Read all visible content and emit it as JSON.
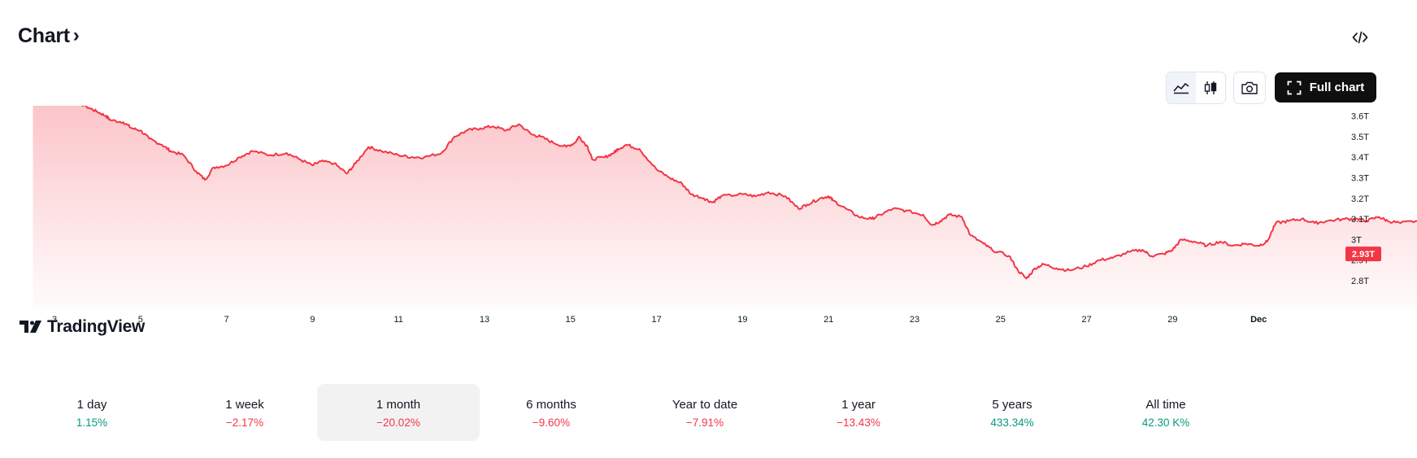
{
  "header": {
    "title": "Chart",
    "chevron": "›",
    "embed_icon": "code-icon"
  },
  "toolbar": {
    "line_icon": "area-chart-icon",
    "candle_icon": "candlestick-icon",
    "camera_icon": "camera-icon",
    "full_chart_label": "Full chart",
    "full_chart_icon": "fullscreen-icon"
  },
  "branding": {
    "logo_text": "TradingView"
  },
  "colors": {
    "line": "#f23645",
    "fill_top": "#f23645",
    "positive": "#089981",
    "negative": "#f23645",
    "badge_bg": "#f23645"
  },
  "chart_data": {
    "type": "area",
    "x_tick_labels": [
      "3",
      "5",
      "7",
      "9",
      "11",
      "13",
      "15",
      "17",
      "19",
      "21",
      "23",
      "25",
      "27",
      "29",
      "Dec"
    ],
    "y_tick_labels": [
      "3.6T",
      "3.5T",
      "3.4T",
      "3.3T",
      "3.2T",
      "3.1T",
      "3T",
      "2.9T",
      "2.8T"
    ],
    "y_ticks": [
      3.6,
      3.5,
      3.4,
      3.3,
      3.2,
      3.1,
      3.0,
      2.9,
      2.8
    ],
    "ylim": [
      2.795,
      3.7
    ],
    "x_unit": "day index (0 = Nov 3, 28 = Dec 1)",
    "last_value_label": "2.93T",
    "last_value": 2.93,
    "grid": false,
    "series": [
      {
        "values": [
          [
            -0.5,
            3.68
          ],
          [
            0.0,
            3.685
          ],
          [
            0.3,
            3.68
          ],
          [
            0.5,
            3.67
          ],
          [
            0.8,
            3.64
          ],
          [
            1.0,
            3.62
          ],
          [
            1.2,
            3.6
          ],
          [
            1.3,
            3.58
          ],
          [
            1.6,
            3.57
          ],
          [
            1.8,
            3.54
          ],
          [
            2.0,
            3.53
          ],
          [
            2.2,
            3.49
          ],
          [
            2.5,
            3.46
          ],
          [
            2.7,
            3.43
          ],
          [
            3.0,
            3.41
          ],
          [
            3.3,
            3.33
          ],
          [
            3.5,
            3.29
          ],
          [
            3.7,
            3.35
          ],
          [
            4.0,
            3.36
          ],
          [
            4.3,
            3.4
          ],
          [
            4.6,
            3.43
          ],
          [
            5.0,
            3.41
          ],
          [
            5.4,
            3.42
          ],
          [
            5.7,
            3.39
          ],
          [
            6.0,
            3.36
          ],
          [
            6.2,
            3.38
          ],
          [
            6.5,
            3.37
          ],
          [
            6.8,
            3.32
          ],
          [
            7.0,
            3.37
          ],
          [
            7.3,
            3.45
          ],
          [
            7.6,
            3.43
          ],
          [
            8.0,
            3.41
          ],
          [
            8.3,
            3.4
          ],
          [
            8.6,
            3.4
          ],
          [
            9.0,
            3.42
          ],
          [
            9.3,
            3.5
          ],
          [
            9.6,
            3.53
          ],
          [
            9.9,
            3.54
          ],
          [
            10.2,
            3.55
          ],
          [
            10.5,
            3.53
          ],
          [
            10.8,
            3.56
          ],
          [
            11.1,
            3.51
          ],
          [
            11.3,
            3.5
          ],
          [
            11.6,
            3.47
          ],
          [
            11.9,
            3.45
          ],
          [
            12.1,
            3.47
          ],
          [
            12.2,
            3.5
          ],
          [
            12.4,
            3.45
          ],
          [
            12.5,
            3.39
          ],
          [
            12.8,
            3.4
          ],
          [
            13.0,
            3.42
          ],
          [
            13.1,
            3.44
          ],
          [
            13.3,
            3.46
          ],
          [
            13.6,
            3.44
          ],
          [
            14.0,
            3.34
          ],
          [
            14.3,
            3.3
          ],
          [
            14.6,
            3.27
          ],
          [
            14.8,
            3.22
          ],
          [
            15.1,
            3.2
          ],
          [
            15.3,
            3.18
          ],
          [
            15.5,
            3.21
          ],
          [
            16.0,
            3.22
          ],
          [
            16.3,
            3.21
          ],
          [
            16.6,
            3.23
          ],
          [
            17.0,
            3.21
          ],
          [
            17.3,
            3.15
          ],
          [
            17.5,
            3.17
          ],
          [
            17.8,
            3.2
          ],
          [
            18.0,
            3.21
          ],
          [
            18.1,
            3.19
          ],
          [
            18.4,
            3.15
          ],
          [
            18.7,
            3.11
          ],
          [
            19.0,
            3.1
          ],
          [
            19.2,
            3.12
          ],
          [
            19.5,
            3.15
          ],
          [
            19.8,
            3.14
          ],
          [
            20.2,
            3.12
          ],
          [
            20.4,
            3.07
          ],
          [
            20.6,
            3.09
          ],
          [
            20.8,
            3.12
          ],
          [
            21.1,
            3.11
          ],
          [
            21.3,
            3.02
          ],
          [
            21.6,
            2.98
          ],
          [
            21.8,
            2.95
          ],
          [
            22.2,
            2.92
          ],
          [
            22.4,
            2.85
          ],
          [
            22.6,
            2.81
          ],
          [
            22.8,
            2.86
          ],
          [
            23.0,
            2.88
          ],
          [
            23.3,
            2.86
          ],
          [
            23.6,
            2.85
          ],
          [
            24.0,
            2.87
          ],
          [
            24.3,
            2.9
          ],
          [
            24.6,
            2.91
          ],
          [
            25.0,
            2.94
          ],
          [
            25.3,
            2.95
          ],
          [
            25.5,
            2.92
          ],
          [
            25.8,
            2.93
          ],
          [
            26.0,
            2.95
          ],
          [
            26.2,
            3.0
          ],
          [
            26.5,
            2.99
          ],
          [
            26.8,
            2.97
          ],
          [
            27.1,
            2.99
          ],
          [
            27.4,
            2.97
          ],
          [
            27.7,
            2.98
          ],
          [
            28.0,
            2.97
          ],
          [
            28.2,
            2.99
          ],
          [
            28.4,
            3.08
          ],
          [
            28.7,
            3.09
          ],
          [
            29.0,
            3.1
          ],
          [
            29.3,
            3.08
          ],
          [
            29.6,
            3.09
          ],
          [
            30.0,
            3.1
          ],
          [
            30.3,
            3.1
          ],
          [
            30.5,
            3.09
          ],
          [
            30.8,
            3.11
          ],
          [
            31.0,
            3.09
          ],
          [
            31.3,
            3.08
          ],
          [
            31.7,
            3.09
          ],
          [
            32.0,
            3.09
          ],
          [
            32.3,
            3.09
          ],
          [
            32.6,
            3.1
          ],
          [
            32.9,
            3.09
          ],
          [
            33.2,
            3.1
          ],
          [
            33.5,
            3.08
          ],
          [
            33.7,
            2.96
          ],
          [
            34.0,
            2.93
          ],
          [
            34.3,
            2.91
          ],
          [
            34.6,
            2.87
          ],
          [
            34.8,
            2.88
          ],
          [
            35.1,
            2.9
          ],
          [
            35.4,
            2.91
          ],
          [
            35.8,
            2.92
          ],
          [
            36.0,
            2.93
          ]
        ]
      }
    ]
  },
  "periods": [
    {
      "label": "1 day",
      "value": "1.15%",
      "trend": "pos"
    },
    {
      "label": "1 week",
      "value": "−2.17%",
      "trend": "neg"
    },
    {
      "label": "1 month",
      "value": "−20.02%",
      "trend": "neg",
      "active": true
    },
    {
      "label": "6 months",
      "value": "−9.60%",
      "trend": "neg"
    },
    {
      "label": "Year to date",
      "value": "−7.91%",
      "trend": "neg"
    },
    {
      "label": "1 year",
      "value": "−13.43%",
      "trend": "neg"
    },
    {
      "label": "5 years",
      "value": "433.34%",
      "trend": "pos"
    },
    {
      "label": "All time",
      "value": "42.30 K%",
      "trend": "pos"
    }
  ]
}
